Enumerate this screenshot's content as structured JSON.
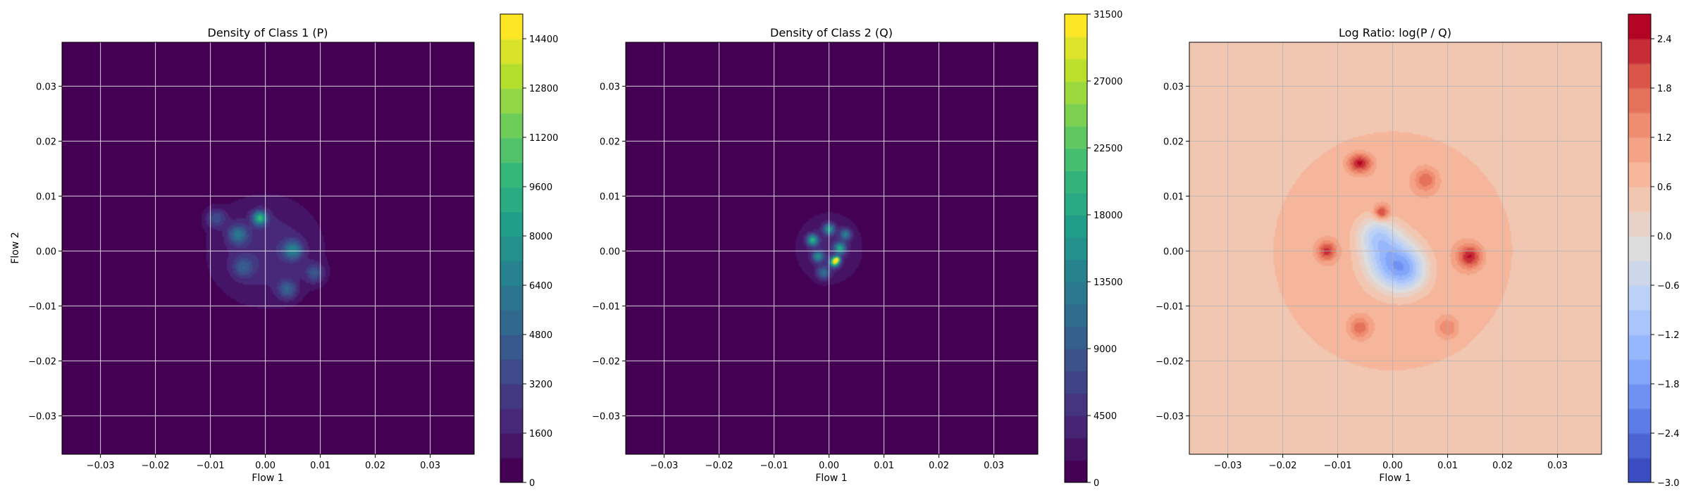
{
  "chart_data": [
    {
      "type": "heatmap",
      "title": "Density of Class 1 (P)",
      "xlabel": "Flow 1",
      "ylabel": "Flow 2",
      "xlim": [
        -0.037,
        0.038
      ],
      "ylim": [
        -0.037,
        0.038
      ],
      "xticks": [
        -0.03,
        -0.02,
        -0.01,
        0.0,
        0.01,
        0.02,
        0.03
      ],
      "yticks": [
        -0.03,
        -0.02,
        -0.01,
        0.0,
        0.01,
        0.02,
        0.03
      ],
      "xtick_labels": [
        "−0.03",
        "−0.02",
        "−0.01",
        "0.00",
        "0.01",
        "0.02",
        "0.03"
      ],
      "ytick_labels": [
        "−0.03",
        "−0.02",
        "−0.01",
        "0.00",
        "0.01",
        "0.02",
        "0.03"
      ],
      "grid": true,
      "colormap": "viridis",
      "colorbar": {
        "range": [
          0,
          15200
        ],
        "ticks": [
          0,
          1600,
          3200,
          4800,
          6400,
          8000,
          9600,
          11200,
          12800,
          14400
        ],
        "tick_labels": [
          "0",
          "1600",
          "3200",
          "4800",
          "6400",
          "8000",
          "9600",
          "11200",
          "12800",
          "14400"
        ],
        "levels": 19
      },
      "blobs": [
        {
          "x": 0.0,
          "y": 0.0,
          "sx": 0.0075,
          "sy": 0.0072,
          "w": 0.15
        },
        {
          "x": -0.001,
          "y": 0.006,
          "sx": 0.0009,
          "sy": 0.0009,
          "w": 0.55
        },
        {
          "x": 0.005,
          "y": 0.0002,
          "sx": 0.0012,
          "sy": 0.0012,
          "w": 0.35
        },
        {
          "x": -0.005,
          "y": 0.003,
          "sx": 0.0012,
          "sy": 0.0012,
          "w": 0.3
        },
        {
          "x": 0.004,
          "y": -0.007,
          "sx": 0.0012,
          "sy": 0.0012,
          "w": 0.25
        },
        {
          "x": -0.009,
          "y": 0.006,
          "sx": 0.0013,
          "sy": 0.0012,
          "w": 0.2
        },
        {
          "x": 0.009,
          "y": -0.004,
          "sx": 0.0012,
          "sy": 0.0012,
          "w": 0.22
        },
        {
          "x": -0.004,
          "y": -0.003,
          "sx": 0.0013,
          "sy": 0.0013,
          "w": 0.2
        }
      ]
    },
    {
      "type": "heatmap",
      "title": "Density of Class 2 (Q)",
      "xlabel": "Flow 1",
      "ylabel": "",
      "xlim": [
        -0.037,
        0.038
      ],
      "ylim": [
        -0.037,
        0.038
      ],
      "xticks": [
        -0.03,
        -0.02,
        -0.01,
        0.0,
        0.01,
        0.02,
        0.03
      ],
      "yticks": [
        -0.03,
        -0.02,
        -0.01,
        0.0,
        0.01,
        0.02,
        0.03
      ],
      "xtick_labels": [
        "−0.03",
        "−0.02",
        "−0.01",
        "0.00",
        "0.01",
        "0.02",
        "0.03"
      ],
      "ytick_labels": [
        "−0.03",
        "−0.02",
        "−0.01",
        "0.00",
        "0.01",
        "0.02",
        "0.03"
      ],
      "grid": true,
      "colormap": "viridis",
      "colorbar": {
        "range": [
          0,
          31500
        ],
        "ticks": [
          0,
          4500,
          9000,
          13500,
          18000,
          22500,
          27000,
          31500
        ],
        "tick_labels": [
          "0",
          "4500",
          "9000",
          "13500",
          "18000",
          "22500",
          "27000",
          "31500"
        ],
        "levels": 21
      },
      "blobs": [
        {
          "x": 0.0,
          "y": 0.0005,
          "sx": 0.0045,
          "sy": 0.0048,
          "w": 0.12
        },
        {
          "x": 0.001,
          "y": -0.002,
          "sx": 0.0006,
          "sy": 0.0006,
          "w": 0.8
        },
        {
          "x": -0.003,
          "y": 0.002,
          "sx": 0.0007,
          "sy": 0.0007,
          "w": 0.55
        },
        {
          "x": 0.0,
          "y": 0.004,
          "sx": 0.0007,
          "sy": 0.0007,
          "w": 0.45
        },
        {
          "x": 0.002,
          "y": 0.0005,
          "sx": 0.0007,
          "sy": 0.0007,
          "w": 0.5
        },
        {
          "x": -0.002,
          "y": -0.001,
          "sx": 0.0007,
          "sy": 0.0007,
          "w": 0.4
        },
        {
          "x": 0.003,
          "y": 0.003,
          "sx": 0.0007,
          "sy": 0.0007,
          "w": 0.35
        },
        {
          "x": -0.001,
          "y": -0.004,
          "sx": 0.0008,
          "sy": 0.0008,
          "w": 0.3
        },
        {
          "x": 0.0015,
          "y": -0.0015,
          "sx": 0.0004,
          "sy": 0.0004,
          "w": 0.55
        }
      ]
    },
    {
      "type": "heatmap",
      "title": "Log Ratio: log(P / Q)",
      "xlabel": "Flow 1",
      "ylabel": "",
      "xlim": [
        -0.037,
        0.038
      ],
      "ylim": [
        -0.037,
        0.038
      ],
      "xticks": [
        -0.03,
        -0.02,
        -0.01,
        0.0,
        0.01,
        0.02,
        0.03
      ],
      "yticks": [
        -0.03,
        -0.02,
        -0.01,
        0.0,
        0.01,
        0.02,
        0.03
      ],
      "xtick_labels": [
        "−0.03",
        "−0.02",
        "−0.01",
        "0.00",
        "0.01",
        "0.02",
        "0.03"
      ],
      "ytick_labels": [
        "−0.03",
        "−0.02",
        "−0.01",
        "0.00",
        "0.01",
        "0.02",
        "0.03"
      ],
      "grid": true,
      "colormap": "coolwarm",
      "colorbar": {
        "range": [
          -3.0,
          2.7
        ],
        "ticks": [
          -3.0,
          -2.4,
          -1.8,
          -1.2,
          -0.6,
          0.0,
          0.6,
          1.2,
          1.8,
          2.4
        ],
        "tick_labels": [
          "−3.0",
          "−2.4",
          "−1.8",
          "−1.2",
          "−0.6",
          "0.0",
          "0.6",
          "1.2",
          "1.8",
          "2.4"
        ],
        "levels": 19
      },
      "background_value": 0.45,
      "blobs": [
        {
          "x": 0.0,
          "y": 0.0,
          "sx": 0.014,
          "sy": 0.014,
          "w": 0.5
        },
        {
          "x": 0.0,
          "y": -0.002,
          "sx": 0.0035,
          "sy": 0.0035,
          "w": -2.3
        },
        {
          "x": -0.003,
          "y": 0.003,
          "sx": 0.0025,
          "sy": 0.0025,
          "w": -1.3
        },
        {
          "x": 0.003,
          "y": -0.004,
          "sx": 0.0025,
          "sy": 0.0025,
          "w": -1.0
        },
        {
          "x": -0.006,
          "y": 0.016,
          "sx": 0.0015,
          "sy": 0.0012,
          "w": 1.8
        },
        {
          "x": 0.014,
          "y": -0.001,
          "sx": 0.0015,
          "sy": 0.0015,
          "w": 1.7
        },
        {
          "x": -0.012,
          "y": 0.0,
          "sx": 0.0012,
          "sy": 0.0012,
          "w": 1.5
        },
        {
          "x": -0.002,
          "y": 0.007,
          "sx": 0.0009,
          "sy": 0.0009,
          "w": 1.6
        },
        {
          "x": 0.006,
          "y": 0.013,
          "sx": 0.0015,
          "sy": 0.0015,
          "w": 1.0
        },
        {
          "x": -0.006,
          "y": -0.014,
          "sx": 0.0014,
          "sy": 0.0014,
          "w": 1.0
        },
        {
          "x": 0.01,
          "y": -0.014,
          "sx": 0.0014,
          "sy": 0.0014,
          "w": 0.8
        }
      ]
    }
  ]
}
